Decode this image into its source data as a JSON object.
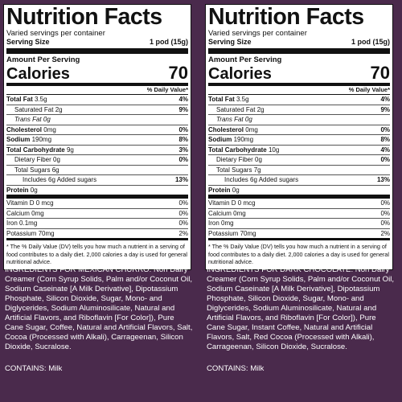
{
  "labels": [
    {
      "title": "Nutrition Facts",
      "servings": "Varied servings per container",
      "serving_size_label": "Serving Size",
      "serving_size_value": "1 pod (15g)",
      "amount_per_serving": "Amount Per Serving",
      "calories_label": "Calories",
      "calories_value": "70",
      "dv_header": "% Daily Value*",
      "nutrients": [
        {
          "name": "Total Fat",
          "amount": "3.5g",
          "pct": "4%"
        },
        {
          "name": "Saturated Fat",
          "amount": "2g",
          "pct": "9%"
        },
        {
          "name": "Trans",
          "amount": "Fat 0g",
          "pct": ""
        },
        {
          "name": "Cholesterol",
          "amount": "0mg",
          "pct": "0%"
        },
        {
          "name": "Sodium",
          "amount": "190mg",
          "pct": "8%"
        },
        {
          "name": "Total Carbohydrate",
          "amount": "9g",
          "pct": "3%"
        },
        {
          "name": "Dietary Fiber",
          "amount": "0g",
          "pct": "0%"
        },
        {
          "name": "Total Sugars",
          "amount": "6g",
          "pct": ""
        },
        {
          "name": "Includes",
          "amount": "6g Added sugars",
          "pct": "13%"
        },
        {
          "name": "Protein",
          "amount": "0g",
          "pct": ""
        }
      ],
      "vitamins": [
        {
          "name": "Vitamin D",
          "amount": "0 mcg",
          "pct": "0%"
        },
        {
          "name": "Calcium",
          "amount": "0mg",
          "pct": "0%"
        },
        {
          "name": "Iron",
          "amount": "0.1mg",
          "pct": "0%"
        },
        {
          "name": "Potassium",
          "amount": "70mg",
          "pct": "2%"
        }
      ],
      "footnote": "* The % Daily Value (DV) tells you how much a nutrient in a serving of food contributes to a daily diet. 2,000 calories a day is used for general nutritional advice.",
      "ingredients": "INGREDIENTS FOR MEXICAN CHURRO: Non Dairy Creamer (Corn Syrup Solids, Palm and/or Coconut Oil, Sodium Caseinate [A Milk Derivative], Dipotassium Phosphate, Silicon Dioxide, Sugar, Mono- and Diglycerides, Sodium Aluminosilicate, Natural and Artificial Flavors, and Riboflavin [For Color]), Pure Cane Sugar, Coffee, Natural and Artificial Flavors, Salt, Cocoa (Processed with Alkali), Carrageenan, Silicon Dioxide, Sucralose.",
      "contains": "CONTAINS: Milk"
    },
    {
      "title": "Nutrition Facts",
      "servings": "Varied servings per container",
      "serving_size_label": "Serving Size",
      "serving_size_value": "1 pod (15g)",
      "amount_per_serving": "Amount Per Serving",
      "calories_label": "Calories",
      "calories_value": "70",
      "dv_header": "% Daily Value*",
      "nutrients": [
        {
          "name": "Total Fat",
          "amount": "3.5g",
          "pct": "4%"
        },
        {
          "name": "Saturated Fat",
          "amount": "2g",
          "pct": "9%"
        },
        {
          "name": "Trans",
          "amount": "Fat 0g",
          "pct": ""
        },
        {
          "name": "Cholesterol",
          "amount": "0mg",
          "pct": "0%"
        },
        {
          "name": "Sodium",
          "amount": "190mg",
          "pct": "8%"
        },
        {
          "name": "Total Carbohydrate",
          "amount": "10g",
          "pct": "4%"
        },
        {
          "name": "Dietary Fiber",
          "amount": "0g",
          "pct": "0%"
        },
        {
          "name": "Total Sugars",
          "amount": "7g",
          "pct": ""
        },
        {
          "name": "Includes",
          "amount": "6g Added sugars",
          "pct": "13%"
        },
        {
          "name": "Protein",
          "amount": "0g",
          "pct": ""
        }
      ],
      "vitamins": [
        {
          "name": "Vitamin D",
          "amount": "0 mcg",
          "pct": "0%"
        },
        {
          "name": "Calcium",
          "amount": "0mg",
          "pct": "0%"
        },
        {
          "name": "Iron",
          "amount": "0mg",
          "pct": "0%"
        },
        {
          "name": "Potassium",
          "amount": "70mg",
          "pct": "2%"
        }
      ],
      "footnote": "* The % Daily Value (DV) tells you how much a nutrient in a serving of food contributes to a daily diet. 2,000 calories a day is used for general nutritional advice.",
      "ingredients": "INGREDIENTS FOR DARK CHOCOLATE: Non Dairy Creamer (Corn Syrup Solids, Palm and/or Coconut Oil, Sodium Caseinate [A Milk Derivative], Dipotassium Phosphate, Silicon Dioxide, Sugar, Mono- and Diglycerides, Sodium Aluminosilicate, Natural and Artificial Flavors, and Riboflavin [For Color]), Pure Cane Sugar, Instant Coffee, Natural and Artificial Flavors, Salt, Red Cocoa (Processed with Alkali), Carrageenan, Silicon Dioxide, Sucralose.",
      "contains": "CONTAINS: Milk"
    }
  ],
  "colors": {
    "background": "#4a2a4c",
    "label": "#ffffff",
    "ink": "#111111"
  }
}
